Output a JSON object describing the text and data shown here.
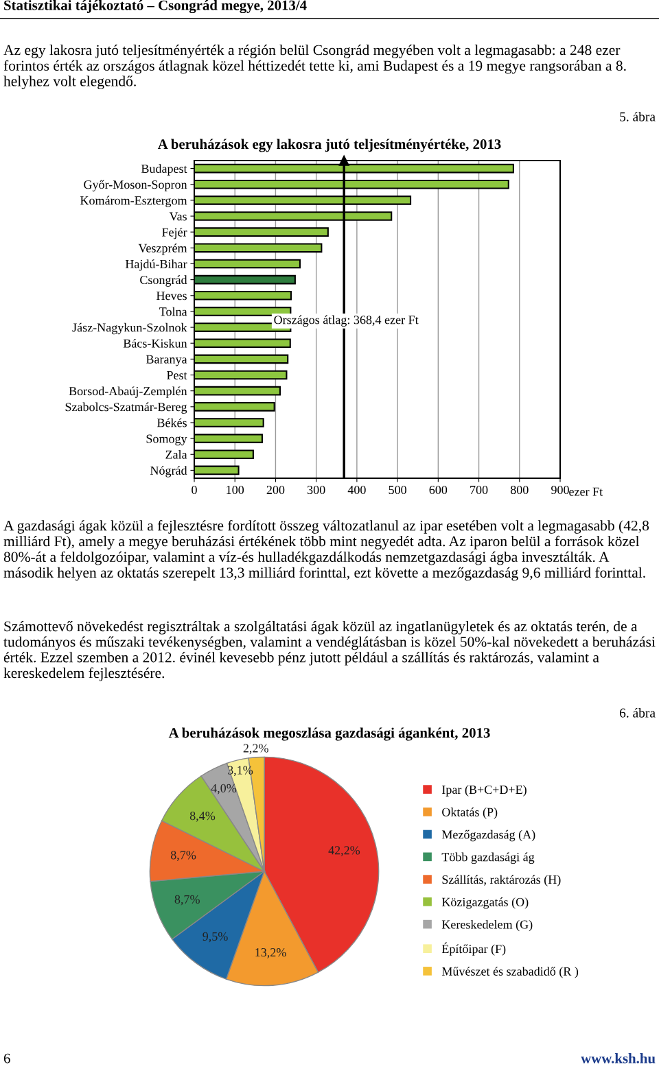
{
  "chart_data": [
    {
      "type": "bar",
      "orientation": "horizontal",
      "title": "A beruházások egy lakosra jutó teljesítményértéke, 2013",
      "xlabel": "ezer Ft",
      "categories": [
        "Budapest",
        "Győr-Moson-Sopron",
        "Komárom-Esztergom",
        "Vas",
        "Fejér",
        "Veszprém",
        "Hajdú-Bihar",
        "Csongrád",
        "Heves",
        "Tolna",
        "Jász-Nagykun-Szolnok",
        "Bács-Kiskun",
        "Baranya",
        "Pest",
        "Borsod-Abaúj-Zemplén",
        "Szabolcs-Szatmár-Bereg",
        "Békés",
        "Somogy",
        "Zala",
        "Nógrád"
      ],
      "values": [
        785,
        773,
        532,
        485,
        329,
        313,
        260,
        248,
        238,
        237,
        237,
        236,
        230,
        227,
        211,
        197,
        170,
        167,
        145,
        109
      ],
      "colors": [
        "#8dc63f",
        "#8dc63f",
        "#8dc63f",
        "#8dc63f",
        "#8dc63f",
        "#8dc63f",
        "#8dc63f",
        "#2e7d3e",
        "#8dc63f",
        "#8dc63f",
        "#8dc63f",
        "#8dc63f",
        "#8dc63f",
        "#8dc63f",
        "#8dc63f",
        "#8dc63f",
        "#8dc63f",
        "#8dc63f",
        "#8dc63f",
        "#8dc63f"
      ],
      "xlim": [
        0,
        900
      ],
      "xticks": [
        0,
        100,
        200,
        300,
        400,
        500,
        600,
        700,
        800,
        900
      ],
      "grid": "x",
      "ref_lines": [
        {
          "axis": "x",
          "value": 368.4,
          "label": "Országos átlag: 368,4 ezer Ft",
          "color": "#000000"
        }
      ],
      "annotations": [
        "Statisztikai tájékoztató – Csongrád megye, 2013/4",
        "Az egy lakosra jutó teljesítményérték a régión belül Csongrád megyében volt a legmagasabb: a 248 ezer forintos érték az országos átlagnak közel héttizedét tette ki, ami Budapest és a 19 megye rangsorában a 8. helyhez volt elegendő.",
        "5. ábra"
      ]
    },
    {
      "type": "pie",
      "title": "A beruházások megoszlása gazdasági áganként, 2013",
      "categories": [
        "Ipar (B+C+D+E)",
        "Oktatás (P)",
        "Mezőgazdaság (A)",
        "Több gazdasági ág",
        "Szállítás, raktározás (H)",
        "Közigazgatás (O)",
        "Kereskedelem (G)",
        "Építőipar (F)",
        "Művészet és szabadidő (R )"
      ],
      "values": [
        42.2,
        13.2,
        9.5,
        8.7,
        8.7,
        8.4,
        4.0,
        3.1,
        2.2
      ],
      "value_labels": [
        "42,2%",
        "13,2%",
        "9,5%",
        "8,7%",
        "8,7%",
        "8,4%",
        "4,0%",
        "3,1%",
        "2,2%"
      ],
      "colors": [
        "#e8312a",
        "#f39a2e",
        "#1f6aa5",
        "#3a9160",
        "#ee6a2c",
        "#97c13d",
        "#a6a6a6",
        "#f7f09c",
        "#f5c23a"
      ],
      "legend": "right",
      "annotations": [
        "A gazdasági ágak közül a fejlesztésre fordított összeg változatlanul az ipar esetében volt a legmagasabb (42,8 milliárd Ft), amely a megye beruházási értékének több mint negyedét adta. Az iparon belül a források közel 80%-át a feldolgozóipar, valamint a víz-és hulladékgazdálkodás nemzetgazdasági ágba invesztálták. A második helyen az oktatás szerepelt 13,3 milliárd forinttal, ezt követte a mezőgazdaság 9,6 milliárd forinttal.",
        "Számottevő növekedést regisztráltak a szolgáltatási ágak közül az ingatlanügyletek és az oktatás terén, de a tudományos és műszaki tevékenységben, valamint a vendéglátásban is közel 50%-kal növekedett a beruházási érték. Ezzel szemben a 2012. évinél kevesebb pénz jutott például a szállítás és raktározás, valamint a kereskedelem fejlesztésére.",
        "6. ábra",
        "6",
        "www.ksh.hu"
      ]
    }
  ]
}
